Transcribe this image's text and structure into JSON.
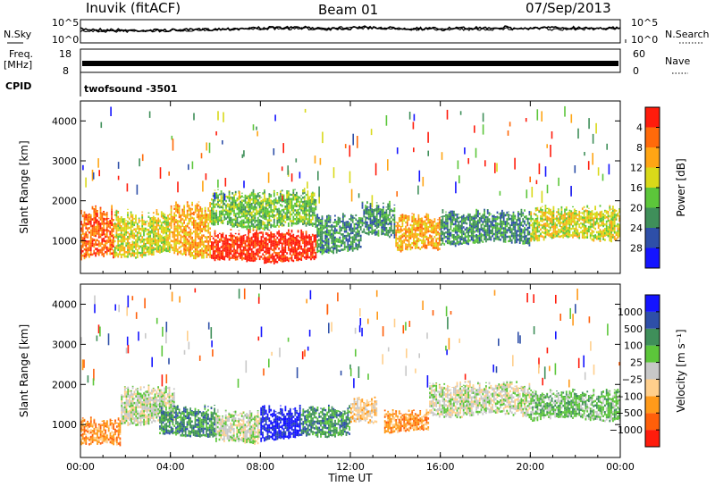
{
  "header": {
    "station": "Inuvik (fitACF)",
    "beam": "Beam 01",
    "date": "07/Sep/2013"
  },
  "top_panels": {
    "nsky_label": "N.Sky",
    "nsky_ticks": [
      "10^5",
      "10^0"
    ],
    "nsearch_label": "N.Search",
    "nsearch_ticks": [
      "10^5",
      "10^0"
    ],
    "freq_label": "Freq.",
    "freq_unit": "[MHz]",
    "freq_ticks": [
      "18",
      "8"
    ],
    "nave_label": "Nave",
    "nave_ticks": [
      "60",
      "0"
    ],
    "cpid_label": "CPID",
    "cpid_value": "twofsound -3501"
  },
  "chart_data": [
    {
      "type": "heatmap",
      "name": "power-panel",
      "ylabel": "Slant Range [km]",
      "ylim": [
        180,
        4500
      ],
      "yticks": [
        1000,
        2000,
        3000,
        4000
      ],
      "xlim": [
        0,
        24
      ],
      "xtick_labels": [
        "00:00",
        "04:00",
        "08:00",
        "12:00",
        "16:00",
        "20:00",
        "00:00"
      ],
      "colorbar_label": "Power [dB]",
      "colorbar_ticks": [
        "4",
        "8",
        "12",
        "16",
        "20",
        "24",
        "28"
      ],
      "colors": [
        "#1414ff",
        "#2e4fa8",
        "#3f8f5a",
        "#5cc63a",
        "#d9d919",
        "#ffa514",
        "#ff6a0a",
        "#ff1c0c"
      ],
      "bands": [
        {
          "x0": 0.0,
          "x1": 1.5,
          "ylo": 500,
          "yhi": 1900,
          "level": 6
        },
        {
          "x0": 1.5,
          "x1": 4.0,
          "ylo": 600,
          "yhi": 1800,
          "level": 4
        },
        {
          "x0": 4.0,
          "x1": 5.8,
          "ylo": 600,
          "yhi": 2000,
          "level": 5
        },
        {
          "x0": 5.8,
          "x1": 10.5,
          "ylo": 450,
          "yhi": 1300,
          "level": 7
        },
        {
          "x0": 5.8,
          "x1": 10.5,
          "ylo": 1300,
          "yhi": 2300,
          "level": 3
        },
        {
          "x0": 10.5,
          "x1": 12.5,
          "ylo": 700,
          "yhi": 1700,
          "level": 2
        },
        {
          "x0": 12.5,
          "x1": 14.0,
          "ylo": 1100,
          "yhi": 2000,
          "level": 2
        },
        {
          "x0": 14.0,
          "x1": 16.0,
          "ylo": 700,
          "yhi": 1700,
          "level": 5
        },
        {
          "x0": 16.0,
          "x1": 20.0,
          "ylo": 900,
          "yhi": 1800,
          "level": 2
        },
        {
          "x0": 20.0,
          "x1": 24.0,
          "ylo": 1000,
          "yhi": 1900,
          "level": 4
        }
      ]
    },
    {
      "type": "heatmap",
      "name": "velocity-panel",
      "ylabel": "Slant Range [km]",
      "ylim": [
        180,
        4500
      ],
      "yticks": [
        1000,
        2000,
        3000,
        4000
      ],
      "xlim": [
        0,
        24
      ],
      "xlabel": "Time UT",
      "xtick_labels": [
        "00:00",
        "04:00",
        "08:00",
        "12:00",
        "16:00",
        "20:00",
        "00:00"
      ],
      "colorbar_label": "Velocity [m s⁻¹]",
      "colorbar_ticks": [
        "1000",
        "500",
        "100",
        "25",
        "−25",
        "−100",
        "−500",
        "−1000"
      ],
      "colors": [
        "#ff1c0c",
        "#ff5f0a",
        "#ff9a1a",
        "#ffcf8c",
        "#c8c8c8",
        "#5cc63a",
        "#3f8f5a",
        "#2e4fa8",
        "#1414ff"
      ],
      "bands": [
        {
          "x0": 0.0,
          "x1": 1.8,
          "ylo": 450,
          "yhi": 1200,
          "level": 2
        },
        {
          "x0": 1.8,
          "x1": 4.2,
          "ylo": 1000,
          "yhi": 2000,
          "level": 4
        },
        {
          "x0": 3.5,
          "x1": 6.0,
          "ylo": 700,
          "yhi": 1500,
          "level": 6
        },
        {
          "x0": 6.0,
          "x1": 8.0,
          "ylo": 500,
          "yhi": 1400,
          "level": 4
        },
        {
          "x0": 8.0,
          "x1": 9.8,
          "ylo": 600,
          "yhi": 1500,
          "level": 8
        },
        {
          "x0": 9.8,
          "x1": 12.0,
          "ylo": 700,
          "yhi": 1500,
          "level": 6
        },
        {
          "x0": 12.0,
          "x1": 13.2,
          "ylo": 1000,
          "yhi": 1700,
          "level": 3
        },
        {
          "x0": 13.5,
          "x1": 15.5,
          "ylo": 800,
          "yhi": 1400,
          "level": 2
        },
        {
          "x0": 15.5,
          "x1": 20.0,
          "ylo": 1200,
          "yhi": 2100,
          "level": 4
        },
        {
          "x0": 20.0,
          "x1": 24.0,
          "ylo": 1100,
          "yhi": 1900,
          "level": 5
        }
      ]
    }
  ]
}
